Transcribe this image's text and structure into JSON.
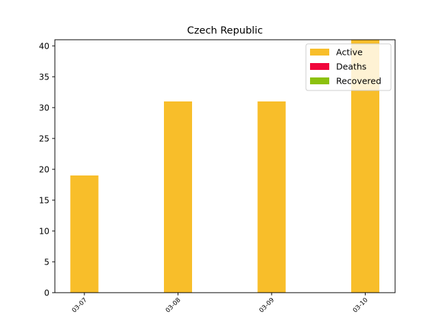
{
  "chart_data": {
    "type": "bar",
    "title": "Czech Republic",
    "xlabel": "",
    "ylabel": "",
    "categories": [
      "03-07",
      "03-08",
      "03-09",
      "03-10"
    ],
    "series": [
      {
        "name": "Active",
        "color": "#f8be2a",
        "values": [
          19,
          31,
          31,
          41
        ]
      },
      {
        "name": "Deaths",
        "color": "#f0063b",
        "values": [
          0,
          0,
          0,
          0
        ]
      },
      {
        "name": "Recovered",
        "color": "#8cc10e",
        "values": [
          0,
          0,
          0,
          0
        ]
      }
    ],
    "stacked": true,
    "ylim": [
      0,
      41
    ],
    "yticks": [
      0,
      5,
      10,
      15,
      20,
      25,
      30,
      35,
      40
    ],
    "grid": false,
    "legend_position": "top-right"
  }
}
